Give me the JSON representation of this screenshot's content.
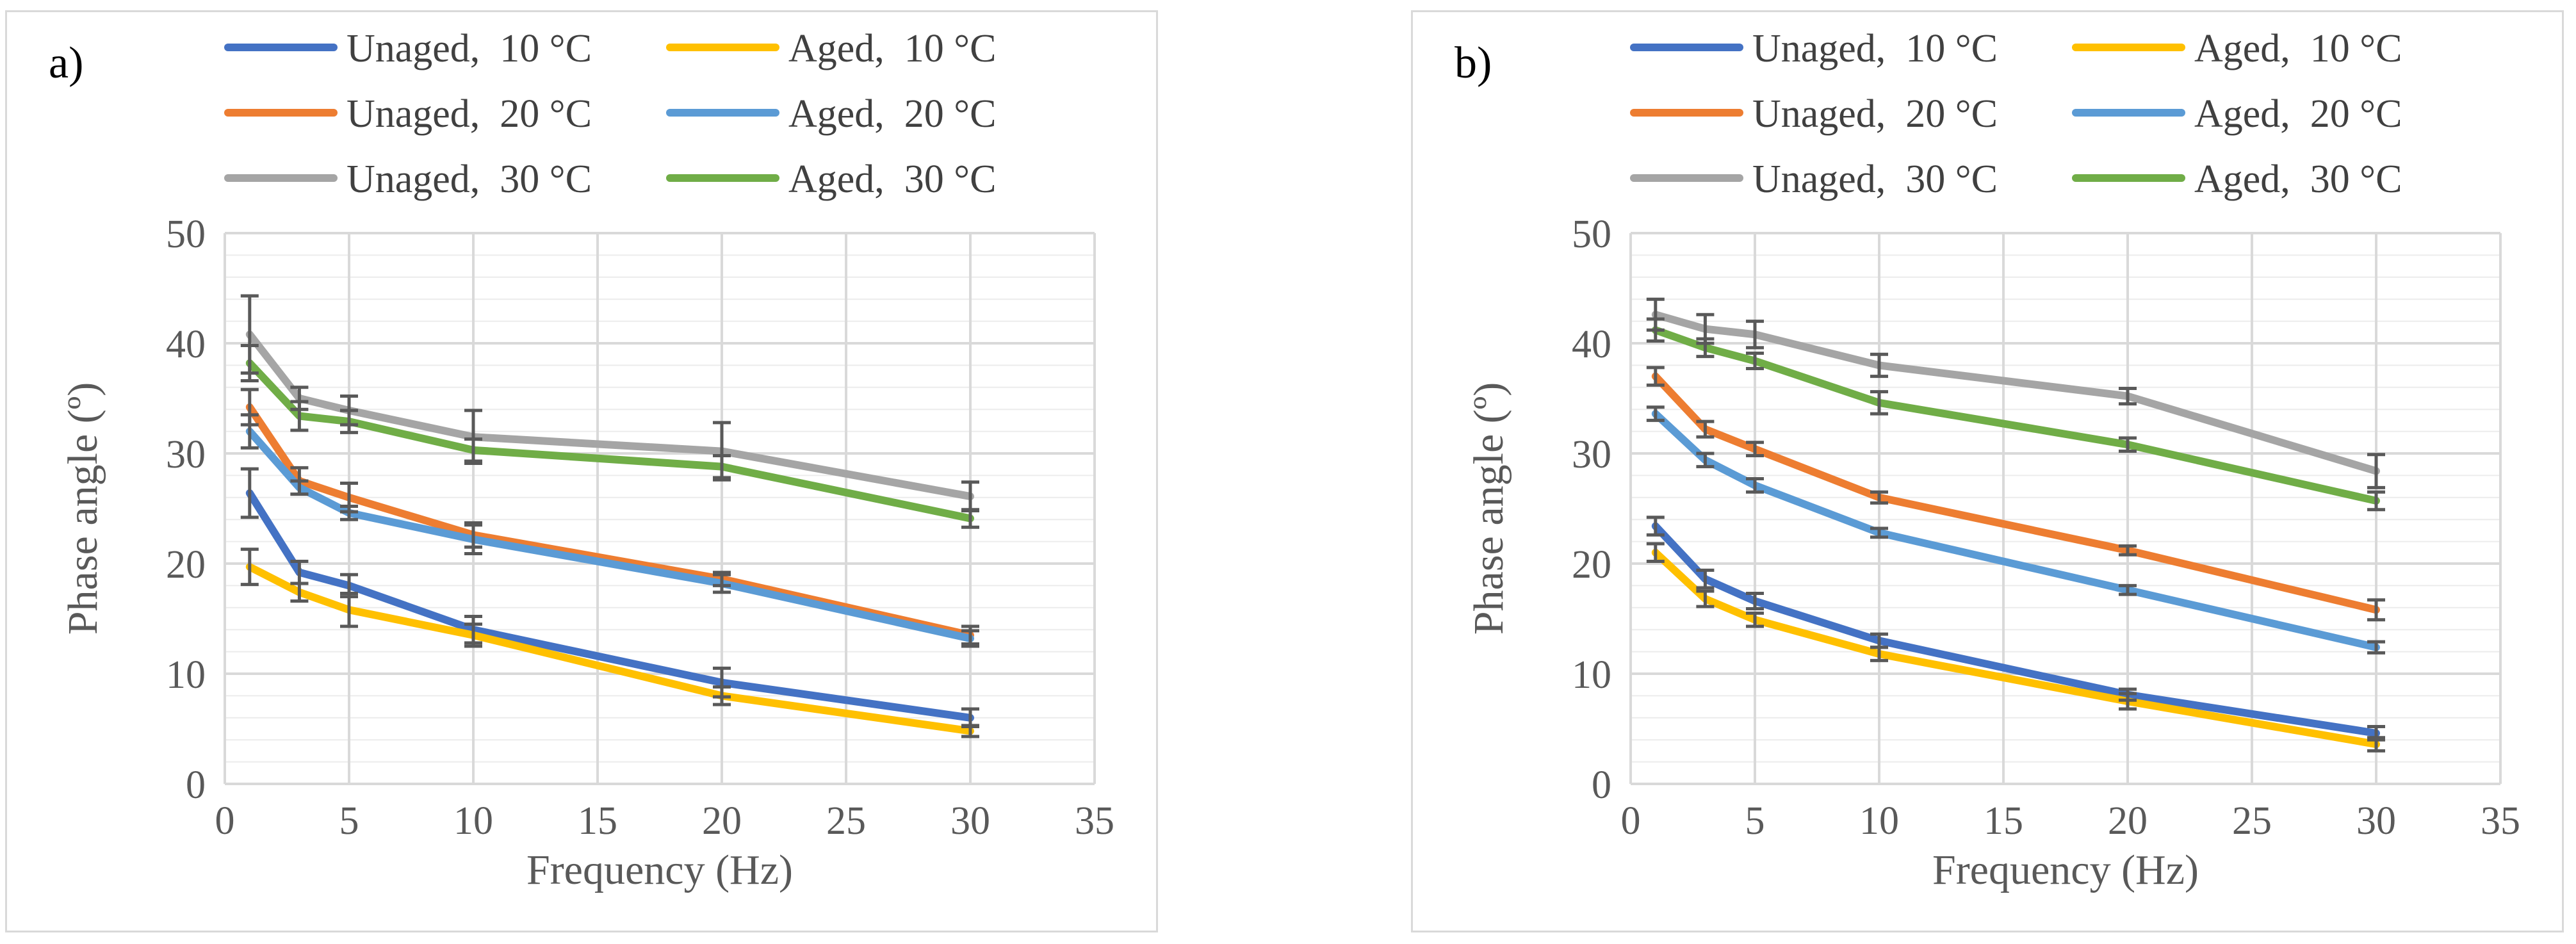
{
  "charts": [
    {
      "label": "a)",
      "chart_data": {
        "type": "line",
        "xlabel": "Frequency (Hz)",
        "ylabel": "Phase angle (º)",
        "xlim": [
          0,
          35
        ],
        "ylim": [
          0,
          50
        ],
        "xticks": [
          0,
          5,
          10,
          15,
          20,
          25,
          30,
          35
        ],
        "yticks": [
          0,
          10,
          20,
          30,
          40,
          50
        ],
        "grid": true,
        "legend_position": "top",
        "x": [
          1,
          3,
          5,
          10,
          20,
          30
        ],
        "series": [
          {
            "name": "Unaged,  10 °C",
            "color": "#4472C4",
            "values": [
              26.4,
              19.2,
              18.0,
              14.0,
              9.2,
              6.0
            ],
            "errors": [
              2.2,
              1.0,
              1.0,
              1.2,
              1.3,
              0.8
            ]
          },
          {
            "name": "Aged,  10 °C",
            "color": "#FFC000",
            "values": [
              19.7,
              17.4,
              15.8,
              13.5,
              8.0,
              4.8
            ],
            "errors": [
              1.6,
              0.8,
              1.5,
              1.0,
              0.8,
              0.5
            ]
          },
          {
            "name": "Unaged,  20 °C",
            "color": "#ED7D31",
            "values": [
              34.2,
              27.5,
              26.0,
              22.6,
              18.6,
              13.5
            ],
            "errors": [
              1.6,
              1.2,
              1.3,
              1.1,
              0.6,
              0.8
            ]
          },
          {
            "name": "Aged,  20 °C",
            "color": "#5B9BD5",
            "values": [
              32.0,
              26.9,
              24.6,
              22.2,
              18.2,
              13.2
            ],
            "errors": [
              1.5,
              0.6,
              0.6,
              1.3,
              0.8,
              0.7
            ]
          },
          {
            "name": "Unaged,  30 °C",
            "color": "#A5A5A5",
            "values": [
              40.8,
              35.0,
              33.9,
              31.5,
              30.2,
              26.1
            ],
            "errors": [
              3.5,
              1.0,
              1.3,
              2.4,
              2.6,
              1.3
            ]
          },
          {
            "name": "Aged,  30 °C",
            "color": "#70AD47",
            "values": [
              38.2,
              33.4,
              32.9,
              30.3,
              28.8,
              24.1
            ],
            "errors": [
              1.6,
              1.3,
              1.0,
              1.0,
              1.0,
              0.8
            ]
          }
        ]
      }
    },
    {
      "label": "b)",
      "chart_data": {
        "type": "line",
        "xlabel": "Frequency (Hz)",
        "ylabel": "Phase angle (º)",
        "xlim": [
          0,
          35
        ],
        "ylim": [
          0,
          50
        ],
        "xticks": [
          0,
          5,
          10,
          15,
          20,
          25,
          30,
          35
        ],
        "yticks": [
          0,
          10,
          20,
          30,
          40,
          50
        ],
        "grid": true,
        "legend_position": "top",
        "x": [
          1,
          3,
          5,
          10,
          20,
          30
        ],
        "series": [
          {
            "name": "Unaged,  10 °C",
            "color": "#4472C4",
            "values": [
              23.4,
              18.6,
              16.6,
              13.0,
              8.1,
              4.6
            ],
            "errors": [
              0.8,
              0.8,
              0.7,
              0.6,
              0.5,
              0.6
            ]
          },
          {
            "name": "Aged,  10 °C",
            "color": "#FFC000",
            "values": [
              21.0,
              16.8,
              14.9,
              11.8,
              7.5,
              3.6
            ],
            "errors": [
              0.8,
              0.7,
              0.6,
              0.6,
              0.7,
              0.6
            ]
          },
          {
            "name": "Unaged,  20 °C",
            "color": "#ED7D31",
            "values": [
              37.0,
              32.2,
              30.4,
              26.0,
              21.2,
              15.8
            ],
            "errors": [
              0.8,
              0.7,
              0.6,
              0.5,
              0.4,
              0.9
            ]
          },
          {
            "name": "Aged,  20 °C",
            "color": "#5B9BD5",
            "values": [
              33.6,
              29.4,
              27.1,
              22.8,
              17.6,
              12.4
            ],
            "errors": [
              0.6,
              0.6,
              0.6,
              0.4,
              0.4,
              0.5
            ]
          },
          {
            "name": "Unaged,  30 °C",
            "color": "#A5A5A5",
            "values": [
              42.6,
              41.3,
              40.8,
              38.0,
              35.2,
              28.4
            ],
            "errors": [
              1.4,
              1.3,
              1.2,
              1.0,
              0.7,
              1.5
            ]
          },
          {
            "name": "Aged,  30 °C",
            "color": "#70AD47",
            "values": [
              41.2,
              39.6,
              38.4,
              34.6,
              30.8,
              25.7
            ],
            "errors": [
              1.0,
              0.8,
              0.7,
              1.0,
              0.6,
              0.8
            ]
          }
        ]
      }
    }
  ]
}
